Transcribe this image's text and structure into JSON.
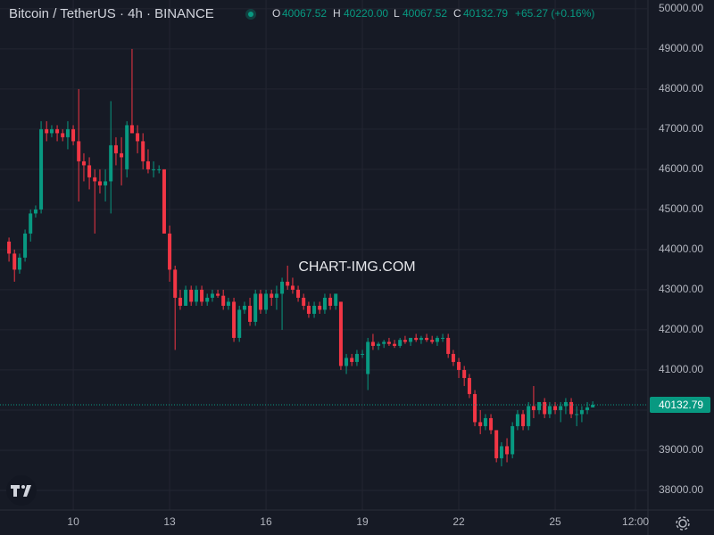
{
  "header": {
    "symbol": "Bitcoin / TetherUS · 4h · BINANCE",
    "o_label": "O",
    "o": "40067.52",
    "h_label": "H",
    "h": "40220.00",
    "l_label": "L",
    "l": "40067.52",
    "c_label": "C",
    "c": "40132.79",
    "change": "+65.27 (+0.16%)"
  },
  "watermark": "CHART-IMG.COM",
  "chart_data": {
    "type": "candlestick",
    "up_color": "#089981",
    "down_color": "#f23645",
    "grid": true,
    "xlim": [
      7.72,
      27.86
    ],
    "ylim": [
      37510,
      50220
    ],
    "xticks": [
      10,
      13,
      16,
      19,
      22,
      25,
      {
        "value": 27.5,
        "label": "12:00"
      }
    ],
    "yticks": [
      {
        "value": 38000,
        "label": "38000.00"
      },
      {
        "value": 39000,
        "label": "39000.00"
      },
      {
        "value": 40000,
        "label": "40000.00"
      },
      {
        "value": 41000,
        "label": "41000.00"
      },
      {
        "value": 42000,
        "label": "42000.00"
      },
      {
        "value": 43000,
        "label": "43000.00"
      },
      {
        "value": 44000,
        "label": "44000.00"
      },
      {
        "value": 45000,
        "label": "45000.00"
      },
      {
        "value": 46000,
        "label": "46000.00"
      },
      {
        "value": 47000,
        "label": "47000.00"
      },
      {
        "value": 48000,
        "label": "48000.00"
      },
      {
        "value": 49000,
        "label": "49000.00"
      },
      {
        "value": 50000,
        "label": "50000.00"
      }
    ],
    "last_price": {
      "value": 40132.79,
      "label": "40132.79"
    },
    "x": [
      8,
      8.17,
      8.33,
      8.5,
      8.67,
      8.83,
      9,
      9.17,
      9.33,
      9.5,
      9.67,
      9.83,
      10,
      10.17,
      10.33,
      10.5,
      10.67,
      10.83,
      11,
      11.17,
      11.33,
      11.5,
      11.67,
      11.83,
      12,
      12.17,
      12.33,
      12.5,
      12.67,
      12.83,
      13,
      13.17,
      13.33,
      13.5,
      13.67,
      13.83,
      14,
      14.17,
      14.33,
      14.5,
      14.67,
      14.83,
      15,
      15.17,
      15.33,
      15.5,
      15.67,
      15.83,
      16,
      16.17,
      16.33,
      16.5,
      16.67,
      16.83,
      17,
      17.17,
      17.33,
      17.5,
      17.67,
      17.83,
      18,
      18.17,
      18.33,
      18.5,
      18.67,
      18.83,
      19,
      19.17,
      19.33,
      19.5,
      19.67,
      19.83,
      20,
      20.17,
      20.33,
      20.5,
      20.67,
      20.83,
      21,
      21.17,
      21.33,
      21.5,
      21.67,
      21.83,
      22,
      22.17,
      22.33,
      22.5,
      22.67,
      22.83,
      23,
      23.17,
      23.33,
      23.5,
      23.67,
      23.83,
      24,
      24.17,
      24.33,
      24.5,
      24.67,
      24.83,
      25,
      25.17,
      25.33,
      25.5,
      25.67,
      25.83,
      26,
      26.17
    ],
    "ohlc": [
      [
        44200,
        44300,
        43700,
        43900
      ],
      [
        43900,
        44000,
        43200,
        43500
      ],
      [
        43500,
        43900,
        43400,
        43800
      ],
      [
        43800,
        44500,
        43700,
        44400
      ],
      [
        44400,
        45000,
        44200,
        44900
      ],
      [
        44900,
        45100,
        44800,
        45000
      ],
      [
        45000,
        47200,
        44900,
        47000
      ],
      [
        47000,
        47200,
        46700,
        46900
      ],
      [
        46900,
        47100,
        46800,
        47000
      ],
      [
        47000,
        47100,
        46700,
        46900
      ],
      [
        46900,
        47000,
        46700,
        46800
      ],
      [
        46800,
        47200,
        46500,
        47000
      ],
      [
        47000,
        47100,
        46600,
        46700
      ],
      [
        46700,
        48000,
        45200,
        46200
      ],
      [
        46200,
        46400,
        45700,
        46100
      ],
      [
        46100,
        46300,
        45500,
        45800
      ],
      [
        45800,
        46000,
        44400,
        45700
      ],
      [
        45700,
        46000,
        45400,
        45600
      ],
      [
        45600,
        46000,
        45200,
        45700
      ],
      [
        45700,
        47700,
        44900,
        46600
      ],
      [
        46600,
        46800,
        46100,
        46400
      ],
      [
        46400,
        46800,
        45600,
        46300
      ],
      [
        46000,
        47200,
        45800,
        47100
      ],
      [
        47100,
        49000,
        46900,
        46900
      ],
      [
        46900,
        47100,
        46400,
        46700
      ],
      [
        46700,
        46900,
        46000,
        46200
      ],
      [
        46200,
        46500,
        45900,
        46000
      ],
      [
        46000,
        46200,
        45800,
        46000
      ],
      [
        46000,
        46100,
        45900,
        46000
      ],
      [
        46000,
        46000,
        44400,
        44400
      ],
      [
        44400,
        44600,
        43200,
        43500
      ],
      [
        43500,
        43600,
        41500,
        42800
      ],
      [
        42800,
        43000,
        42500,
        42600
      ],
      [
        42600,
        43100,
        42600,
        43000
      ],
      [
        43000,
        43100,
        42600,
        42700
      ],
      [
        42700,
        43100,
        42600,
        43000
      ],
      [
        43000,
        43100,
        42600,
        42700
      ],
      [
        42700,
        42900,
        42600,
        42800
      ],
      [
        42800,
        43000,
        42700,
        42900
      ],
      [
        42900,
        43000,
        42800,
        42850
      ],
      [
        42850,
        43000,
        42500,
        42600
      ],
      [
        42600,
        42800,
        42500,
        42700
      ],
      [
        42700,
        42800,
        41700,
        41800
      ],
      [
        41800,
        42600,
        41700,
        42500
      ],
      [
        42500,
        42700,
        42400,
        42600
      ],
      [
        42600,
        42800,
        42100,
        42200
      ],
      [
        42200,
        43000,
        42100,
        42900
      ],
      [
        42900,
        43000,
        42400,
        42500
      ],
      [
        42500,
        43000,
        42400,
        42900
      ],
      [
        42900,
        43000,
        42600,
        42800
      ],
      [
        42800,
        43100,
        42500,
        42900
      ],
      [
        42900,
        43300,
        42000,
        43200
      ],
      [
        43200,
        43600,
        43000,
        43100
      ],
      [
        43100,
        43300,
        42900,
        43000
      ],
      [
        43000,
        43100,
        42700,
        42800
      ],
      [
        42800,
        42900,
        42500,
        42600
      ],
      [
        42600,
        42700,
        42300,
        42400
      ],
      [
        42400,
        42700,
        42300,
        42600
      ],
      [
        42600,
        42700,
        42400,
        42500
      ],
      [
        42500,
        42900,
        42400,
        42800
      ],
      [
        42800,
        42900,
        42500,
        42600
      ],
      [
        42600,
        42900,
        42500,
        42900
      ],
      [
        42700,
        42700,
        41000,
        41100
      ],
      [
        41100,
        41400,
        40900,
        41300
      ],
      [
        41300,
        41400,
        41100,
        41200
      ],
      [
        41200,
        41500,
        41100,
        41400
      ],
      [
        41400,
        41500,
        41300,
        41400
      ],
      [
        40900,
        41800,
        40500,
        41700
      ],
      [
        41700,
        41900,
        41500,
        41600
      ],
      [
        41600,
        41700,
        41500,
        41650
      ],
      [
        41650,
        41750,
        41550,
        41700
      ],
      [
        41700,
        41800,
        41600,
        41650
      ],
      [
        41650,
        41750,
        41550,
        41600
      ],
      [
        41600,
        41800,
        41550,
        41750
      ],
      [
        41750,
        41850,
        41650,
        41700
      ],
      [
        41700,
        41800,
        41600,
        41800
      ],
      [
        41800,
        41900,
        41700,
        41750
      ],
      [
        41750,
        41850,
        41650,
        41800
      ],
      [
        41800,
        41900,
        41700,
        41750
      ],
      [
        41750,
        41850,
        41650,
        41700
      ],
      [
        41700,
        41850,
        41600,
        41800
      ],
      [
        41800,
        41900,
        41700,
        41800
      ],
      [
        41800,
        41900,
        41300,
        41400
      ],
      [
        41400,
        41500,
        41100,
        41200
      ],
      [
        41200,
        41300,
        40800,
        41000
      ],
      [
        41000,
        41100,
        40600,
        40800
      ],
      [
        40800,
        40900,
        40300,
        40400
      ],
      [
        40400,
        40500,
        39600,
        39700
      ],
      [
        39700,
        40000,
        39400,
        39600
      ],
      [
        39600,
        39900,
        39500,
        39800
      ],
      [
        39800,
        39900,
        39400,
        39500
      ],
      [
        39500,
        39500,
        38700,
        38800
      ],
      [
        38800,
        39200,
        38600,
        39100
      ],
      [
        39100,
        39300,
        38700,
        38900
      ],
      [
        38900,
        39700,
        38800,
        39600
      ],
      [
        39600,
        40000,
        39500,
        39900
      ],
      [
        39900,
        40000,
        39500,
        39600
      ],
      [
        39600,
        40200,
        39500,
        40100
      ],
      [
        40100,
        40600,
        39800,
        40000
      ],
      [
        40000,
        40200,
        39900,
        40200
      ],
      [
        40200,
        40300,
        39800,
        39900
      ],
      [
        39900,
        40200,
        39800,
        40100
      ],
      [
        40100,
        40200,
        39900,
        40000
      ],
      [
        40000,
        40200,
        39700,
        40100
      ],
      [
        40100,
        40300,
        39900,
        40200
      ],
      [
        40200,
        40300,
        39800,
        39900
      ],
      [
        39900,
        40100,
        39600,
        39900
      ],
      [
        39900,
        40100,
        39700,
        40000
      ],
      [
        40000,
        40200,
        39900,
        40067.52
      ],
      [
        40067.52,
        40220,
        40067.52,
        40132.79
      ]
    ]
  }
}
